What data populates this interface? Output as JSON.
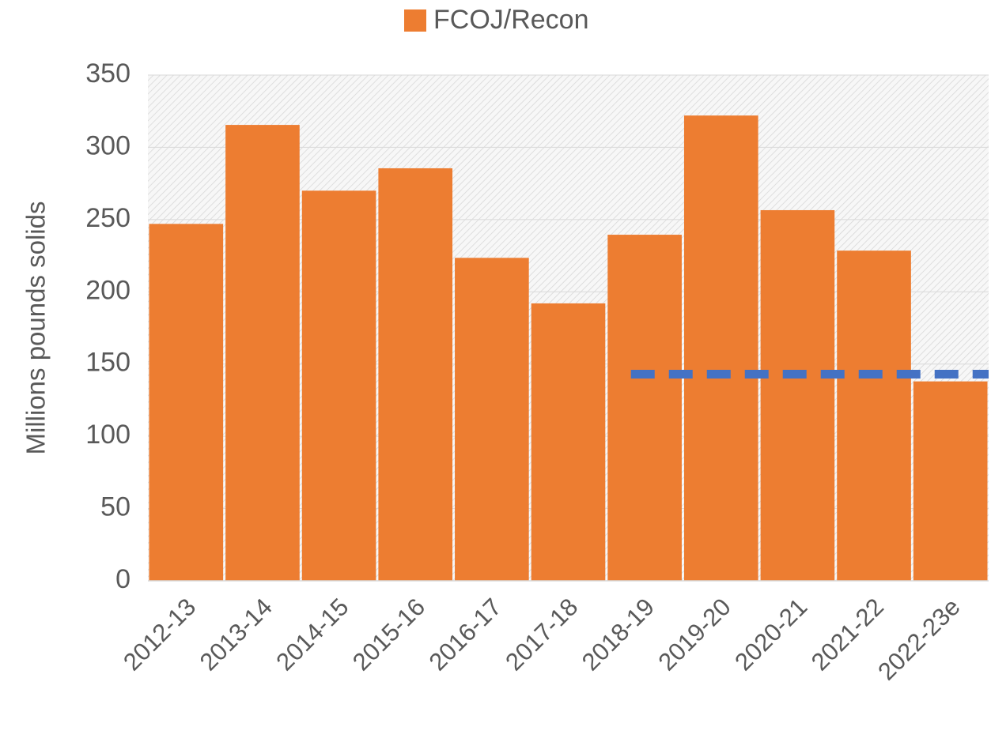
{
  "chart_data": {
    "type": "bar",
    "y_label": "Millions pounds solids",
    "categories": [
      "2012-13",
      "2013-14",
      "2014-15",
      "2015-16",
      "2016-17",
      "2017-18",
      "2018-19",
      "2019-20",
      "2020-21",
      "2021-22",
      "2022-23e"
    ],
    "series": [
      {
        "name": "FCOJ/Recon",
        "color": "#ed7d31",
        "values": [
          247,
          315.5,
          270,
          285.5,
          223.5,
          192,
          239.5,
          322,
          256.5,
          228.5,
          138
        ]
      }
    ],
    "reference_line": {
      "value": 143,
      "from": "2018-19",
      "to": "2022-23e",
      "color": "#4472c4",
      "dashed": true
    },
    "ylim": [
      0,
      350
    ],
    "yticks": [
      0,
      50,
      100,
      150,
      200,
      250,
      300,
      350
    ],
    "grid": true,
    "legend": "top"
  }
}
